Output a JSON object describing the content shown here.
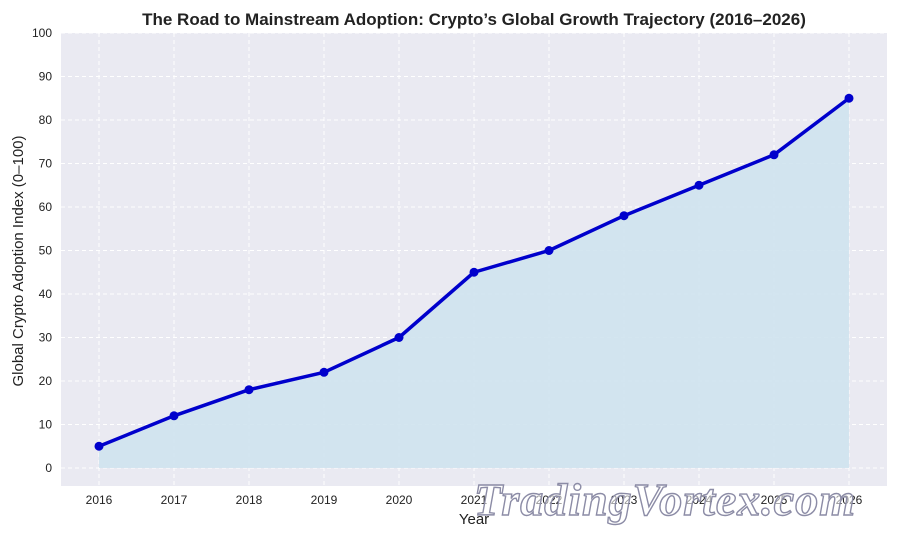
{
  "chart_data": {
    "type": "area",
    "title": "The Road to Mainstream Adoption: Crypto’s Global Growth Trajectory (2016–2026)",
    "xlabel": "Year",
    "ylabel": "Global Crypto Adoption Index (0–100)",
    "x": [
      "2016",
      "2017",
      "2018",
      "2019",
      "2020",
      "2021",
      "2022",
      "2023",
      "2024",
      "2025",
      "2026"
    ],
    "values": [
      5,
      12,
      18,
      22,
      30,
      45,
      50,
      58,
      65,
      72,
      85
    ],
    "ylim": [
      0,
      100
    ],
    "yticks": [
      "0",
      "10",
      "20",
      "30",
      "40",
      "50",
      "60",
      "70",
      "80",
      "90",
      "100"
    ],
    "grid": true,
    "colors": {
      "line": "#0000cc",
      "fill": "#cfe3ee",
      "background": "#eaeaf2",
      "grid": "#ffffff"
    }
  },
  "watermark": "TradingVortex.com"
}
